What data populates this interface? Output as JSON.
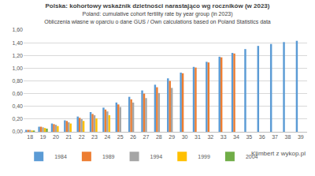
{
  "chart_data": {
    "type": "bar",
    "title": "Polska: kohortowy wskaźnik dzietności narastająco wg roczników (w 2023)",
    "subtitle": [
      "Poland: cumulative cohort fertility rate by year group (in 2023)",
      "Obliczenia własne w oparciu o dane GUS / Own calculations based on Poland Statistics data"
    ],
    "annotations": [
      "Klimbert z wykop.pl"
    ],
    "categories": [
      "18",
      "19",
      "20",
      "21",
      "22",
      "23",
      "24",
      "25",
      "26",
      "27",
      "28",
      "29",
      "30",
      "31",
      "32",
      "33",
      "34",
      "35",
      "36",
      "37",
      "38",
      "39"
    ],
    "series": [
      {
        "name": "1984",
        "color": "#5B9BD5",
        "values": [
          0.03,
          0.08,
          0.13,
          0.18,
          0.24,
          0.31,
          0.38,
          0.46,
          0.55,
          0.65,
          0.74,
          0.84,
          0.93,
          1.02,
          1.1,
          1.18,
          1.24,
          1.3,
          1.35,
          1.38,
          1.41,
          1.43
        ]
      },
      {
        "name": "1989",
        "color": "#ED7D31",
        "values": [
          0.03,
          0.08,
          0.12,
          0.17,
          0.22,
          0.28,
          0.35,
          0.43,
          0.51,
          0.6,
          0.7,
          0.8,
          0.92,
          1.01,
          1.09,
          1.17,
          1.23,
          null,
          null,
          null,
          null,
          null
        ]
      },
      {
        "name": "1994",
        "color": "#A5A5A5",
        "values": [
          0.03,
          0.07,
          0.11,
          0.15,
          0.2,
          0.26,
          0.32,
          0.39,
          0.46,
          0.53,
          0.61,
          0.69,
          null,
          null,
          null,
          null,
          null,
          null,
          null,
          null,
          null,
          null
        ]
      },
      {
        "name": "1999",
        "color": "#FFC000",
        "values": [
          0.02,
          0.06,
          0.09,
          0.13,
          0.17,
          0.21,
          0.26,
          null,
          null,
          null,
          null,
          null,
          null,
          null,
          null,
          null,
          null,
          null,
          null,
          null,
          null,
          null
        ]
      },
      {
        "name": "2004",
        "color": "#70AD47",
        "values": [
          0.02,
          0.05,
          null,
          null,
          null,
          null,
          null,
          null,
          null,
          null,
          null,
          null,
          null,
          null,
          null,
          null,
          null,
          null,
          null,
          null,
          null,
          null
        ]
      }
    ],
    "ylim": [
      0,
      1.6
    ],
    "yticks": [
      {
        "value": 0,
        "label": "0,00"
      },
      {
        "value": 0.2,
        "label": "0,20"
      },
      {
        "value": 0.4,
        "label": "0,40"
      },
      {
        "value": 0.6,
        "label": "0,60"
      },
      {
        "value": 0.8,
        "label": "0,80"
      },
      {
        "value": 1.0,
        "label": "1,00"
      },
      {
        "value": 1.2,
        "label": "1,20"
      },
      {
        "value": 1.4,
        "label": "1,40"
      },
      {
        "value": 1.6,
        "label": "1,60"
      }
    ],
    "grid": true,
    "legend": "bottom"
  }
}
